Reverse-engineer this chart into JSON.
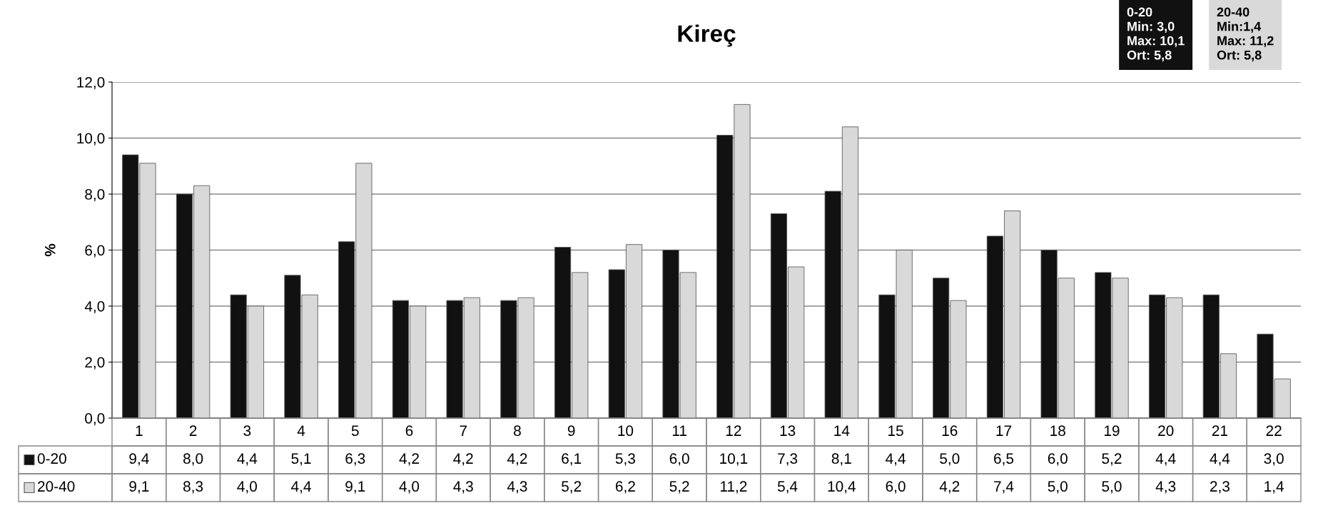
{
  "chart_data": {
    "type": "bar",
    "title": "Kireç",
    "ylabel": "%",
    "categories": [
      "1",
      "2",
      "3",
      "4",
      "5",
      "6",
      "7",
      "8",
      "9",
      "10",
      "11",
      "12",
      "13",
      "14",
      "15",
      "16",
      "17",
      "18",
      "19",
      "20",
      "21",
      "22"
    ],
    "series": [
      {
        "name": "0-20",
        "color": "#111111",
        "values": [
          9.4,
          8.0,
          4.4,
          5.1,
          6.3,
          4.2,
          4.2,
          4.2,
          6.1,
          5.3,
          6.0,
          10.1,
          7.3,
          8.1,
          4.4,
          5.0,
          6.5,
          6.0,
          5.2,
          4.4,
          4.4,
          3.0
        ],
        "value_labels": [
          "9,4",
          "8,0",
          "4,4",
          "5,1",
          "6,3",
          "4,2",
          "4,2",
          "4,2",
          "6,1",
          "5,3",
          "6,0",
          "10,1",
          "7,3",
          "8,1",
          "4,4",
          "5,0",
          "6,5",
          "6,0",
          "5,2",
          "4,4",
          "4,4",
          "3,0"
        ]
      },
      {
        "name": "20-40",
        "color": "#d9d9d9",
        "values": [
          9.1,
          8.3,
          4.0,
          4.4,
          9.1,
          4.0,
          4.3,
          4.3,
          5.2,
          6.2,
          5.2,
          11.2,
          5.4,
          10.4,
          6.0,
          4.2,
          7.4,
          5.0,
          5.0,
          4.3,
          2.3,
          1.4
        ],
        "value_labels": [
          "9,1",
          "8,3",
          "4,0",
          "4,4",
          "9,1",
          "4,0",
          "4,3",
          "4,3",
          "5,2",
          "6,2",
          "5,2",
          "11,2",
          "5,4",
          "10,4",
          "6,0",
          "4,2",
          "7,4",
          "5,0",
          "5,0",
          "4,3",
          "2,3",
          "1,4"
        ]
      }
    ],
    "ylim": [
      0,
      12
    ],
    "yticks": [
      {
        "value": 0,
        "label": "0,0"
      },
      {
        "value": 2,
        "label": "2,0"
      },
      {
        "value": 4,
        "label": "4,0"
      },
      {
        "value": 6,
        "label": "6,0"
      },
      {
        "value": 8,
        "label": "8,0"
      },
      {
        "value": 10,
        "label": "10,0"
      },
      {
        "value": 12,
        "label": "12,0"
      }
    ],
    "grid": "y",
    "legend": "bottom",
    "annotations": [
      "0-20\nMin: 3,0\nMax: 10,1\nOrt: 5,8",
      "20-40\nMin:1,4\nMax: 11,2\nOrt: 5,8"
    ]
  }
}
